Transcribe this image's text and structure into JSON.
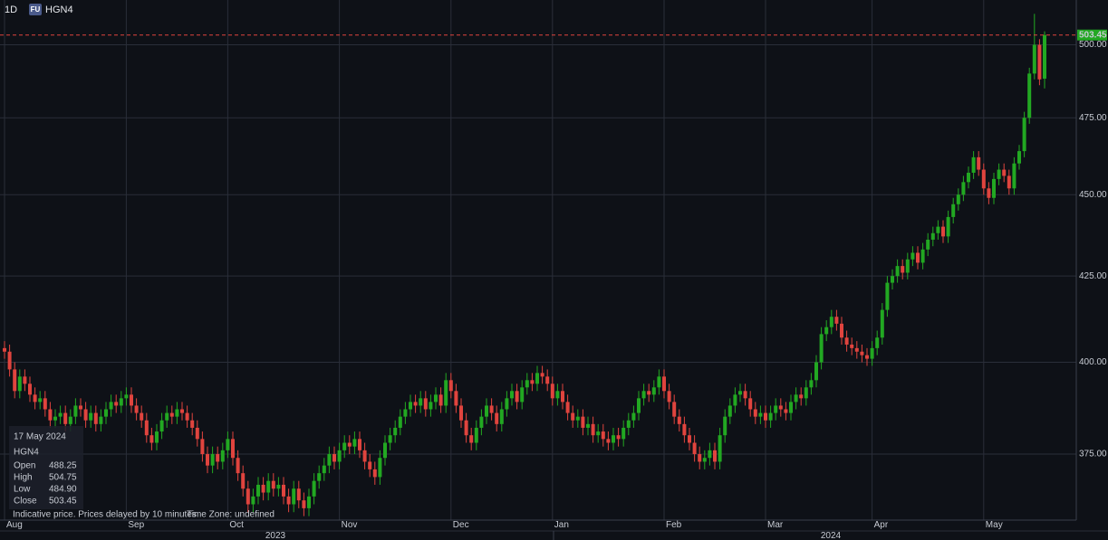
{
  "chart_data": {
    "type": "candlestick",
    "interval": "1D",
    "badge": "FU",
    "symbol": "HGN4",
    "log": true,
    "grid": true,
    "up_color": "#22a822",
    "down_color": "#e0443e",
    "ylim": [
      358,
      516
    ],
    "yticks": [
      {
        "value": 375,
        "label": "375.00"
      },
      {
        "value": 400,
        "label": "400.00"
      },
      {
        "value": 425,
        "label": "425.00"
      },
      {
        "value": 450,
        "label": "450.00"
      },
      {
        "value": 475,
        "label": "475.00"
      },
      {
        "value": 500,
        "label": "500.00"
      }
    ],
    "xticks": [
      {
        "value": 0,
        "label": "Aug"
      },
      {
        "value": 24,
        "label": "Sep"
      },
      {
        "value": 44,
        "label": "Oct"
      },
      {
        "value": 66,
        "label": "Nov"
      },
      {
        "value": 88,
        "label": "Dec"
      },
      {
        "value": 108,
        "label": "Jan"
      },
      {
        "value": 130,
        "label": "Feb"
      },
      {
        "value": 150,
        "label": "Mar"
      },
      {
        "value": 171,
        "label": "Apr"
      },
      {
        "value": 193,
        "label": "May"
      }
    ],
    "year_labels": [
      "2023",
      "2024"
    ],
    "price_label": "503.45",
    "series": [
      {
        "name": "HGN4",
        "open": [
          404,
          403,
          398,
          392,
          396,
          394,
          391,
          389,
          390,
          387,
          384,
          385,
          386,
          383,
          385,
          388,
          387,
          384,
          386,
          383,
          385,
          387,
          389,
          388,
          390,
          391,
          388,
          386,
          384,
          380,
          378,
          381,
          384,
          386,
          385,
          387,
          386,
          384,
          382,
          379,
          375,
          372,
          375,
          373,
          376,
          379,
          374,
          370,
          366,
          362,
          364,
          367,
          365,
          368,
          366,
          367,
          364,
          362,
          366,
          363,
          361,
          364,
          368,
          370,
          372,
          375,
          373,
          376,
          378,
          377,
          379,
          376,
          373,
          371,
          369,
          374,
          378,
          380,
          382,
          385,
          387,
          389,
          388,
          390,
          387,
          389,
          391,
          388,
          395,
          392,
          388,
          384,
          380,
          378,
          382,
          385,
          388,
          386,
          383,
          387,
          390,
          392,
          389,
          393,
          395,
          394,
          397,
          396,
          394,
          390,
          392,
          389,
          386,
          384,
          385,
          382,
          383,
          380,
          381,
          379,
          378,
          380,
          379,
          382,
          384,
          386,
          390,
          392,
          391,
          393,
          396,
          392,
          389,
          385,
          383,
          380,
          378,
          375,
          373,
          374,
          376,
          373,
          380,
          385,
          388,
          391,
          392,
          390,
          387,
          385,
          386,
          384,
          386,
          388,
          387,
          386,
          389,
          391,
          390,
          393,
          395,
          400,
          408,
          410,
          413,
          411,
          407,
          405,
          404,
          403,
          402,
          401,
          404,
          407,
          415,
          423,
          425,
          428,
          426,
          430,
          432,
          429,
          433,
          436,
          438,
          440,
          437,
          443,
          447,
          450,
          454,
          457,
          462,
          458,
          452,
          449,
          455,
          458,
          456,
          452,
          460,
          464,
          475,
          490,
          500,
          488.25
        ],
        "high": [
          406,
          405,
          400,
          398,
          398,
          396,
          393,
          392,
          392,
          389,
          387,
          388,
          388,
          387,
          390,
          390,
          389,
          388,
          388,
          387,
          389,
          391,
          391,
          392,
          393,
          393,
          390,
          388,
          386,
          382,
          383,
          386,
          388,
          388,
          389,
          389,
          388,
          386,
          384,
          381,
          377,
          377,
          377,
          378,
          381,
          381,
          376,
          372,
          368,
          366,
          369,
          369,
          370,
          370,
          369,
          369,
          366,
          368,
          368,
          365,
          366,
          370,
          372,
          374,
          377,
          377,
          378,
          380,
          380,
          381,
          381,
          378,
          375,
          373,
          376,
          380,
          382,
          384,
          387,
          389,
          391,
          391,
          392,
          392,
          391,
          393,
          393,
          397,
          397,
          394,
          390,
          386,
          382,
          384,
          387,
          390,
          390,
          388,
          389,
          392,
          394,
          394,
          395,
          397,
          397,
          399,
          399,
          398,
          396,
          394,
          394,
          391,
          388,
          387,
          387,
          385,
          385,
          383,
          383,
          381,
          382,
          382,
          384,
          386,
          388,
          392,
          394,
          394,
          395,
          398,
          398,
          394,
          391,
          387,
          385,
          382,
          380,
          377,
          376,
          378,
          378,
          382,
          387,
          390,
          393,
          394,
          394,
          392,
          389,
          388,
          388,
          388,
          390,
          390,
          389,
          391,
          393,
          393,
          395,
          397,
          402,
          410,
          412,
          415,
          415,
          413,
          409,
          407,
          406,
          405,
          404,
          406,
          409,
          417,
          425,
          427,
          430,
          430,
          432,
          434,
          434,
          435,
          438,
          440,
          442,
          442,
          445,
          449,
          452,
          456,
          459,
          464,
          464,
          460,
          454,
          457,
          460,
          460,
          458,
          462,
          466,
          477,
          492,
          511,
          502,
          504.75
        ],
        "low": [
          401,
          396,
          390,
          390,
          392,
          389,
          387,
          387,
          385,
          382,
          382,
          383,
          381,
          381,
          383,
          385,
          382,
          382,
          381,
          381,
          383,
          385,
          386,
          386,
          388,
          386,
          384,
          382,
          378,
          376,
          376,
          379,
          382,
          383,
          383,
          384,
          382,
          380,
          377,
          373,
          370,
          370,
          371,
          371,
          374,
          372,
          368,
          364,
          360,
          360,
          362,
          363,
          363,
          364,
          364,
          362,
          360,
          360,
          361,
          359,
          359,
          362,
          366,
          368,
          370,
          371,
          371,
          374,
          375,
          375,
          374,
          371,
          369,
          367,
          367,
          372,
          376,
          378,
          380,
          383,
          385,
          386,
          386,
          385,
          385,
          387,
          386,
          386,
          390,
          386,
          382,
          378,
          376,
          376,
          380,
          383,
          384,
          381,
          381,
          385,
          388,
          387,
          387,
          391,
          392,
          392,
          394,
          392,
          388,
          388,
          387,
          384,
          382,
          382,
          380,
          380,
          378,
          378,
          377,
          376,
          376,
          377,
          377,
          380,
          382,
          384,
          388,
          389,
          389,
          391,
          390,
          387,
          383,
          381,
          378,
          376,
          373,
          371,
          371,
          372,
          371,
          371,
          378,
          383,
          386,
          389,
          388,
          385,
          383,
          383,
          382,
          382,
          384,
          385,
          384,
          384,
          387,
          388,
          388,
          391,
          393,
          398,
          406,
          408,
          409,
          405,
          403,
          402,
          401,
          400,
          399,
          399,
          402,
          405,
          413,
          421,
          423,
          424,
          424,
          428,
          427,
          427,
          431,
          434,
          436,
          435,
          435,
          441,
          445,
          448,
          452,
          455,
          456,
          450,
          447,
          447,
          453,
          454,
          450,
          450,
          458,
          462,
          473,
          488,
          486,
          484.9
        ],
        "close": [
          403,
          398,
          392,
          396,
          394,
          391,
          389,
          390,
          387,
          384,
          385,
          386,
          383,
          385,
          388,
          387,
          384,
          386,
          383,
          385,
          387,
          389,
          388,
          390,
          391,
          388,
          386,
          384,
          380,
          378,
          381,
          384,
          386,
          385,
          387,
          386,
          384,
          382,
          379,
          375,
          372,
          375,
          373,
          376,
          379,
          374,
          370,
          366,
          362,
          364,
          367,
          365,
          368,
          366,
          367,
          364,
          362,
          366,
          363,
          361,
          364,
          368,
          370,
          372,
          375,
          373,
          376,
          378,
          377,
          379,
          376,
          373,
          371,
          369,
          374,
          378,
          380,
          382,
          385,
          387,
          389,
          388,
          390,
          387,
          389,
          391,
          388,
          395,
          392,
          388,
          384,
          380,
          378,
          382,
          385,
          388,
          386,
          383,
          387,
          390,
          392,
          389,
          393,
          395,
          394,
          397,
          396,
          394,
          390,
          392,
          389,
          386,
          384,
          385,
          382,
          383,
          380,
          381,
          379,
          378,
          380,
          379,
          382,
          384,
          386,
          390,
          392,
          391,
          393,
          396,
          392,
          389,
          385,
          383,
          380,
          378,
          375,
          373,
          374,
          376,
          373,
          380,
          385,
          388,
          391,
          392,
          390,
          387,
          385,
          386,
          384,
          386,
          388,
          387,
          386,
          389,
          391,
          390,
          393,
          395,
          400,
          408,
          410,
          413,
          411,
          407,
          405,
          404,
          403,
          402,
          401,
          404,
          407,
          415,
          423,
          425,
          428,
          426,
          430,
          432,
          429,
          433,
          436,
          438,
          440,
          437,
          443,
          447,
          450,
          454,
          457,
          462,
          458,
          452,
          449,
          455,
          458,
          456,
          452,
          460,
          464,
          475,
          490,
          500,
          488,
          503.45
        ]
      }
    ],
    "tooltip": {
      "date": "17 May 2024",
      "symbol": "HGN4",
      "rows": [
        {
          "label": "Open",
          "value": "488.25"
        },
        {
          "label": "High",
          "value": "504.75"
        },
        {
          "label": "Low",
          "value": "484.90"
        },
        {
          "label": "Close",
          "value": "503.45"
        }
      ]
    },
    "footer": {
      "note": "Indicative price. Prices delayed by 10 minutes",
      "timezone": "Time Zone: undefined"
    }
  }
}
